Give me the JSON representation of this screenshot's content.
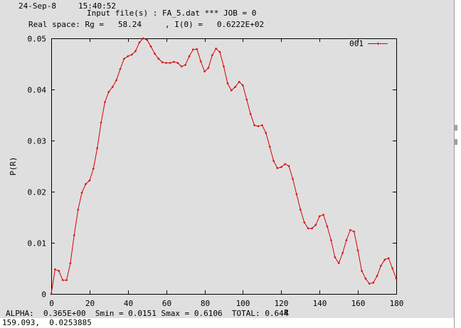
{
  "header": {
    "date": "24-Sep-8",
    "time": "15:40:52",
    "input_line": "Input file(s) : FA_5.dat *** JOB = 0",
    "realspace_line": "Real space: Rg =   58.24     , I(0) =   0.6222E+02"
  },
  "footer": {
    "stats_line": "ALPHA:  0.365E+00  Smin = 0.0151 Smax = 0.6106  TOTAL: 0.644",
    "cursor_readout": "159.093,  0.0253885"
  },
  "colors": {
    "series": "#d40000",
    "background": "#e0dfe0"
  },
  "chart_data": {
    "type": "line",
    "title": "",
    "xlabel": "R",
    "ylabel": "P(R)",
    "xlim": [
      0,
      180
    ],
    "ylim": [
      0,
      0.05
    ],
    "x_ticks": [
      "0",
      "20",
      "40",
      "60",
      "80",
      "100",
      "120",
      "140",
      "160",
      "180"
    ],
    "y_ticks": [
      "0",
      "0.01",
      "0.02",
      "0.03",
      "0.04",
      "0.05"
    ],
    "grid": false,
    "legend_position": "top-right",
    "series": [
      {
        "name": "001",
        "x": [
          0,
          2,
          4,
          6,
          8,
          10,
          12,
          14,
          16,
          18,
          20,
          22,
          24,
          26,
          28,
          30,
          32,
          34,
          36,
          38,
          40,
          42,
          44,
          46,
          48,
          50,
          52,
          54,
          56,
          58,
          60,
          62,
          64,
          66,
          68,
          70,
          72,
          74,
          76,
          78,
          80,
          82,
          84,
          86,
          88,
          90,
          92,
          94,
          96,
          98,
          100,
          102,
          104,
          106,
          108,
          110,
          112,
          114,
          116,
          118,
          120,
          122,
          124,
          126,
          128,
          130,
          132,
          134,
          136,
          138,
          140,
          142,
          144,
          146,
          148,
          150,
          152,
          154,
          156,
          158,
          160,
          162,
          164,
          166,
          168,
          170,
          172,
          174,
          176,
          178,
          180
        ],
        "y": [
          0,
          0.0048,
          0.0045,
          0.0027,
          0.0027,
          0.006,
          0.0115,
          0.0165,
          0.0198,
          0.0215,
          0.0222,
          0.0245,
          0.0285,
          0.0335,
          0.0375,
          0.0395,
          0.0405,
          0.0418,
          0.044,
          0.046,
          0.0465,
          0.0468,
          0.0475,
          0.0492,
          0.05,
          0.0497,
          0.0484,
          0.047,
          0.046,
          0.0453,
          0.0452,
          0.0452,
          0.0454,
          0.0452,
          0.0445,
          0.0448,
          0.0465,
          0.0478,
          0.0479,
          0.0455,
          0.0435,
          0.0442,
          0.0467,
          0.048,
          0.0473,
          0.0445,
          0.0412,
          0.0398,
          0.0405,
          0.0415,
          0.0408,
          0.038,
          0.0352,
          0.033,
          0.0328,
          0.033,
          0.0315,
          0.0288,
          0.026,
          0.0246,
          0.0248,
          0.0254,
          0.025,
          0.0225,
          0.0195,
          0.0165,
          0.014,
          0.0128,
          0.0128,
          0.0135,
          0.0152,
          0.0155,
          0.0132,
          0.0105,
          0.0072,
          0.006,
          0.008,
          0.0105,
          0.0125,
          0.0122,
          0.0085,
          0.0045,
          0.003,
          0.002,
          0.0022,
          0.0035,
          0.0055,
          0.0067,
          0.007,
          0.005,
          0.003
        ]
      }
    ]
  }
}
